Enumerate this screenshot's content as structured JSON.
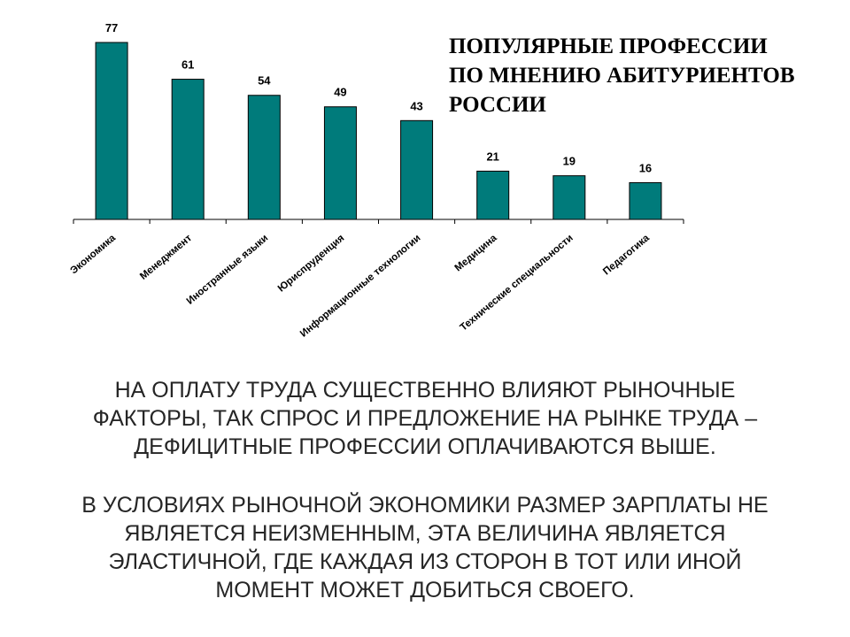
{
  "chart_data": {
    "type": "bar",
    "title": "ПОПУЛЯРНЫЕ ПРОФЕССИИ ПО МНЕНИЮ АБИТУРИЕНТОВ РОССИИ",
    "title_lines": [
      "ПОПУЛЯРНЫЕ ПРОФЕССИИ",
      "ПО МНЕНИЮ АБИТУРИЕНТОВ",
      "РОССИИ"
    ],
    "categories": [
      "Экономика",
      "Менеджмент",
      "Иностранные языки",
      "Юриспруденция",
      "Информационные технологии",
      "Медицина",
      "Технические специальности",
      "Педагогика"
    ],
    "values": [
      77,
      61,
      54,
      49,
      43,
      21,
      19,
      16
    ],
    "xlabel": "",
    "ylabel": "",
    "ylim": [
      0,
      77
    ],
    "grid": false,
    "bar_color": "#007B7B"
  },
  "text": {
    "para1": [
      "НА ОПЛАТУ ТРУДА СУЩЕСТВЕННО ВЛИЯЮТ РЫНОЧНЫЕ",
      "ФАКТОРЫ, ТАК СПРОС И ПРЕДЛОЖЕНИЕ НА РЫНКЕ ТРУДА –",
      "ДЕФИЦИТНЫЕ ПРОФЕССИИ ОПЛАЧИВАЮТСЯ ВЫШЕ."
    ],
    "para2": [
      "В УСЛОВИЯХ РЫНОЧНОЙ ЭКОНОМИКИ РАЗМЕР ЗАРПЛАТЫ НЕ",
      "ЯВЛЯЕТСЯ НЕИЗМЕННЫМ, ЭТА ВЕЛИЧИНА ЯВЛЯЕТСЯ",
      "ЭЛАСТИЧНОЙ, ГДЕ КАЖДАЯ ИЗ СТОРОН В ТОТ ИЛИ ИНОЙ",
      "МОМЕНТ МОЖЕТ ДОБИТЬСЯ СВОЕГО."
    ]
  }
}
